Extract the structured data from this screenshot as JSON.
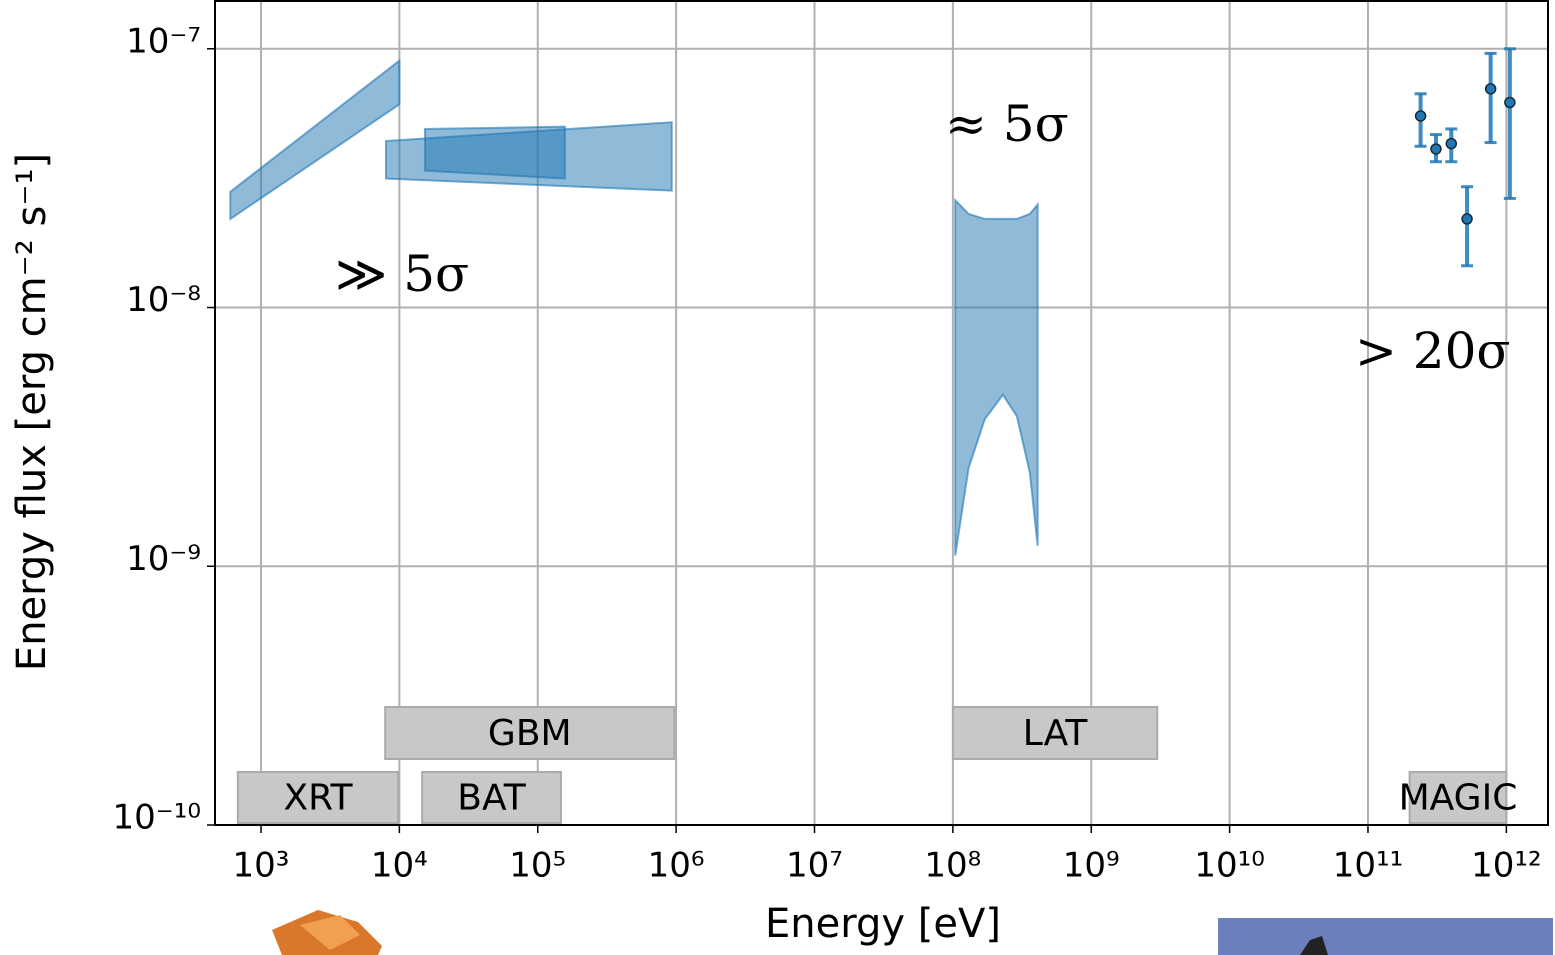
{
  "chart_data": {
    "type": "band",
    "xlabel": "Energy [eV]",
    "ylabel": "Energy flux [erg cm⁻² s⁻¹]",
    "xscale": "log",
    "yscale": "log",
    "grid": true,
    "xlim": [
      465,
      2000000000000
    ],
    "ylim": [
      1e-10,
      1.53e-07
    ],
    "xticks": [
      {
        "value": 1000,
        "label": "10³"
      },
      {
        "value": 10000,
        "label": "10⁴"
      },
      {
        "value": 100000,
        "label": "10⁵"
      },
      {
        "value": 1000000,
        "label": "10⁶"
      },
      {
        "value": 10000000,
        "label": "10⁷"
      },
      {
        "value": 100000000,
        "label": "10⁸"
      },
      {
        "value": 1000000000,
        "label": "10⁹"
      },
      {
        "value": 10000000000,
        "label": "10¹⁰"
      },
      {
        "value": 100000000000,
        "label": "10¹¹"
      },
      {
        "value": 1000000000000,
        "label": "10¹²"
      }
    ],
    "yticks": [
      {
        "value": 1e-10,
        "label": "10⁻¹⁰"
      },
      {
        "value": 1e-09,
        "label": "10⁻⁹"
      },
      {
        "value": 1e-08,
        "label": "10⁻⁸"
      },
      {
        "value": 1e-07,
        "label": "10⁻⁷"
      }
    ],
    "color": "#1f77b4",
    "bands": [
      {
        "x": [
          600,
          10000
        ],
        "lower": [
          2.2e-08,
          6.1e-08
        ],
        "upper": [
          2.8e-08,
          9e-08
        ]
      },
      {
        "x": [
          8000,
          930000
        ],
        "lower": [
          3.15e-08,
          2.83e-08
        ],
        "upper": [
          4.4e-08,
          5.2e-08
        ]
      },
      {
        "x": [
          15300,
          157000
        ],
        "lower": [
          3.38e-08,
          3.15e-08
        ],
        "upper": [
          4.9e-08,
          5e-08
        ]
      },
      {
        "x": [
          104000000,
          130000000,
          170000000,
          230000000,
          290000000,
          360000000,
          410000000
        ],
        "lower": [
          1.1e-09,
          2.4e-09,
          3.7e-09,
          4.6e-09,
          3.8e-09,
          2.3e-09,
          1.2e-09
        ],
        "upper": [
          2.6e-08,
          2.3e-08,
          2.2e-08,
          2.2e-08,
          2.2e-08,
          2.3e-08,
          2.5e-08
        ]
      }
    ],
    "points": {
      "x": [
        240000000000,
        310000000000,
        400000000000,
        520000000000,
        770000000000,
        1060000000000
      ],
      "values": [
        5.5e-08,
        4.1e-08,
        4.3e-08,
        2.2e-08,
        7e-08,
        6.2e-08
      ],
      "lower": [
        4.2e-08,
        3.66e-08,
        3.66e-08,
        1.45e-08,
        4.34e-08,
        2.64e-08
      ],
      "upper": [
        6.7e-08,
        4.66e-08,
        4.9e-08,
        2.93e-08,
        9.6e-08,
        1e-07
      ]
    },
    "instruments": [
      {
        "label": "XRT",
        "range": [
          680,
          9800
        ]
      },
      {
        "label": "BAT",
        "range": [
          14600,
          147000
        ]
      },
      {
        "label": "GBM",
        "range": [
          7900,
          970000
        ]
      },
      {
        "label": "LAT",
        "range": [
          100000000,
          3000000000
        ]
      },
      {
        "label": "MAGIC",
        "range": [
          200000000000,
          1000000000000
        ]
      }
    ],
    "annotations": [
      "≫ 5σ",
      "≈ 5σ",
      "> 20σ"
    ]
  }
}
